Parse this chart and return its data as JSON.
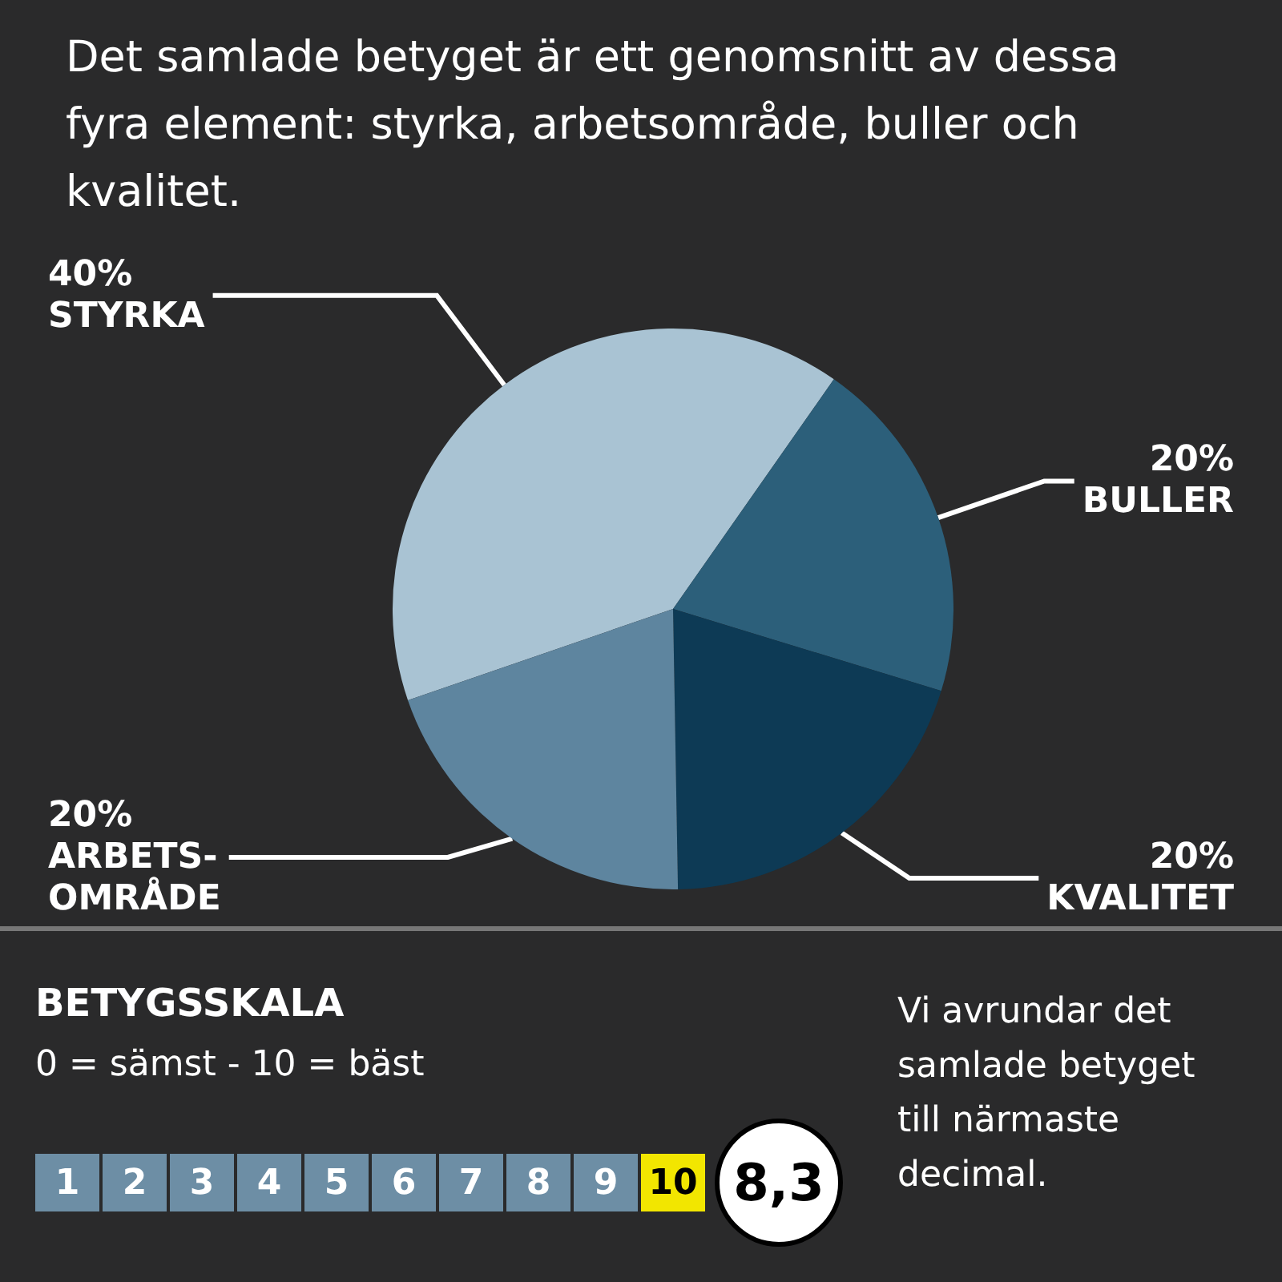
{
  "chart_data": {
    "type": "pie",
    "title": "Det samlade betyget är ett genomsnitt av dessa fyra element: styrka, arbetsområde, buller och kvalitet.",
    "categories": [
      "STYRKA",
      "BULLER",
      "KVALITET",
      "ARBETS-\nOMRÅDE"
    ],
    "values": [
      40,
      20,
      20,
      20
    ],
    "colors": [
      "#a9c3d3",
      "#2c5f7a",
      "#0d3a55",
      "#5e859f"
    ],
    "value_labels": [
      "40%",
      "20%",
      "20%",
      "20%"
    ],
    "legend": false,
    "annotations": [
      "BETYGSSKALA",
      "0 = sämst - 10 = bäst",
      "1",
      "2",
      "3",
      "4",
      "5",
      "6",
      "7",
      "8",
      "9",
      "10",
      "8,3",
      "Vi  avrundar det samlade betyget till närmaste decimal."
    ]
  }
}
